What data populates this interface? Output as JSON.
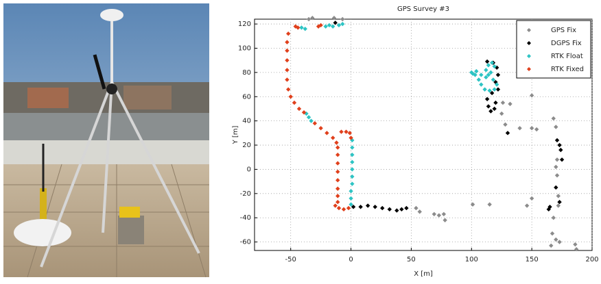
{
  "chart_data": {
    "type": "scatter",
    "title": "GPS Survey #3",
    "x_label": "X [m]",
    "y_label": "Y [m]",
    "xlim": [
      -80,
      200
    ],
    "ylim": [
      -67,
      124
    ],
    "xticks": [
      -50,
      0,
      50,
      100,
      150,
      200
    ],
    "yticks": [
      -60,
      -40,
      -20,
      0,
      20,
      40,
      60,
      80,
      100,
      120
    ],
    "grid": true,
    "legend": "upper right",
    "series": [
      {
        "name": "GPS Fix",
        "color": "#8c8c8c",
        "x": [
          -35,
          -32,
          -14,
          -7,
          54,
          57,
          69,
          73,
          77,
          78,
          101,
          115,
          146,
          150,
          125,
          128,
          126,
          132,
          150,
          140,
          150,
          154,
          168,
          170,
          171,
          170,
          171,
          172,
          172,
          168,
          167,
          170,
          173,
          166,
          186,
          187
        ],
        "values": [
          124,
          125,
          125,
          124,
          -32,
          -35,
          -37,
          -38,
          -37,
          -42,
          -29,
          -29,
          -30,
          -24,
          46,
          37,
          55,
          54,
          61,
          34,
          34,
          33,
          42,
          35,
          8,
          2,
          -5,
          -22,
          -30,
          -40,
          -53,
          -58,
          -60,
          -63,
          -62,
          -66
        ]
      },
      {
        "name": "DGPS Fix",
        "color": "#000000",
        "x": [
          -13,
          2,
          8,
          14,
          20,
          26,
          32,
          38,
          42,
          46,
          113,
          118,
          121,
          122,
          120,
          122,
          117,
          113,
          114,
          116,
          119,
          120,
          130,
          171,
          173,
          174,
          175,
          170,
          173,
          165,
          164
        ],
        "values": [
          121,
          -31,
          -31,
          -30,
          -31,
          -32,
          -33,
          -34,
          -33,
          -32,
          89,
          88,
          84,
          78,
          72,
          66,
          63,
          58,
          52,
          48,
          50,
          55,
          30,
          24,
          20,
          16,
          8,
          -15,
          -27,
          -31,
          -33
        ]
      },
      {
        "name": "RTK Float",
        "color": "#2ec4c4",
        "x": [
          -41,
          -38,
          -21,
          -18,
          -15,
          -10,
          -7,
          -37,
          -35,
          -33,
          1,
          1,
          1,
          1,
          1,
          1,
          1,
          0,
          0,
          0,
          100,
          103,
          106,
          108,
          111,
          115,
          119,
          121,
          118,
          114,
          112,
          114,
          117,
          119,
          116,
          112,
          108,
          104,
          101
        ],
        "values": [
          117,
          116,
          118,
          119,
          118,
          119,
          120,
          46,
          43,
          40,
          24,
          18,
          12,
          6,
          0,
          -6,
          -12,
          -18,
          -24,
          -29,
          80,
          78,
          74,
          70,
          66,
          65,
          66,
          70,
          74,
          78,
          82,
          86,
          88,
          85,
          80,
          76,
          78,
          81,
          79
        ]
      },
      {
        "name": "RTK Fixed",
        "color": "#e0401c",
        "x": [
          -46,
          -44,
          -27,
          -25,
          -52,
          -53,
          -53,
          -53,
          -53,
          -53,
          -52,
          -50,
          -47,
          -43,
          -39,
          -30,
          -25,
          -20,
          -15,
          -12,
          -11,
          -8,
          -4,
          -1,
          0,
          -11,
          -11,
          -11,
          -11,
          -11,
          -11,
          -11,
          -13,
          -10,
          -6,
          -2
        ],
        "values": [
          118,
          117,
          118,
          119,
          112,
          105,
          98,
          90,
          82,
          74,
          66,
          60,
          55,
          50,
          47,
          38,
          34,
          30,
          26,
          22,
          18,
          31,
          31,
          30,
          26,
          12,
          5,
          -2,
          -9,
          -16,
          -22,
          -27,
          -30,
          -32,
          -33,
          -32
        ]
      }
    ]
  }
}
